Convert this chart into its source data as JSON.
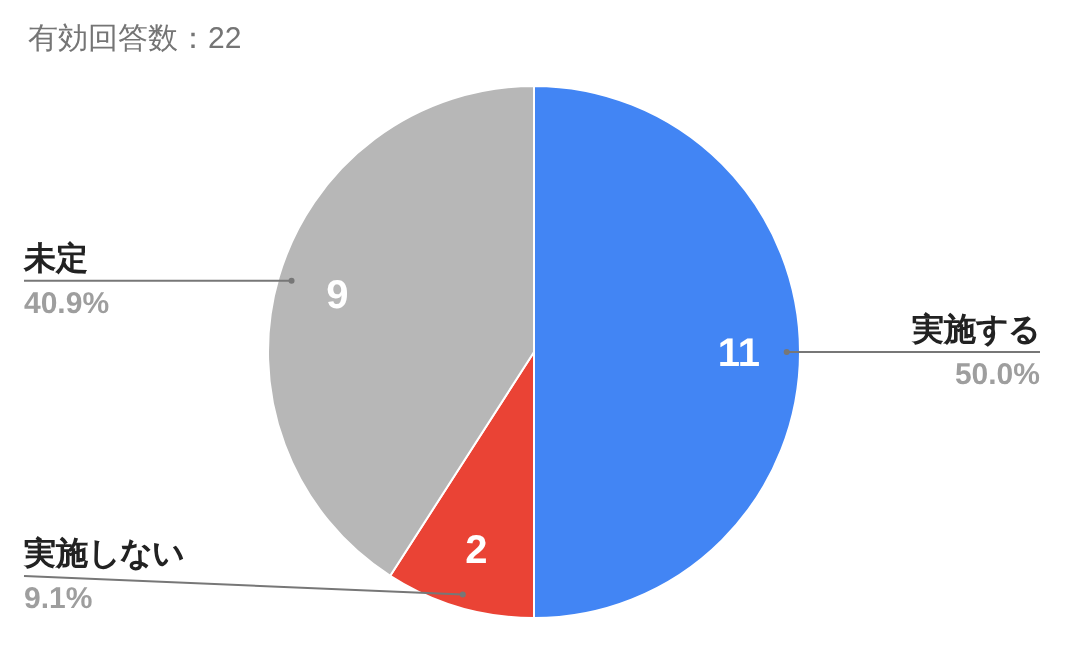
{
  "chart_data": {
    "type": "pie",
    "title": "有効回答数：22",
    "categories": [
      "実施する",
      "実施しない",
      "未定"
    ],
    "values": [
      11,
      2,
      9
    ],
    "colors": [
      "#4285f4",
      "#ea4335",
      "#b7b7b7"
    ],
    "data_labels": true,
    "annotations": [
      "50.0%",
      "9.1%",
      "40.9%"
    ]
  }
}
